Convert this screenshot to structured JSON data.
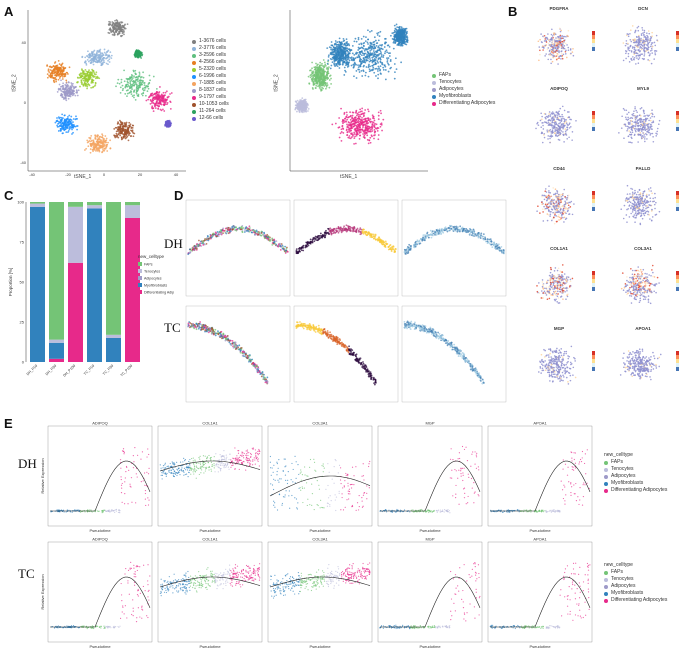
{
  "panels": {
    "A": "A",
    "B": "B",
    "C": "C",
    "D": "D",
    "E": "E"
  },
  "row_labels": {
    "dh": "DH",
    "tc": "TC",
    "dh2": "DH",
    "tc2": "TC"
  },
  "tsne_left": {
    "xlabel": "tSNE_1",
    "ylabel": "tSNE_2",
    "xticks": [
      "-40",
      "-20",
      "0",
      "20",
      "40"
    ],
    "yticks": [
      "40",
      "0",
      "-40"
    ],
    "legend": [
      {
        "label": "1-3676 cells",
        "color": "#7f7f7f"
      },
      {
        "label": "2-3776 cells",
        "color": "#8fb3d9"
      },
      {
        "label": "3-2596 cells",
        "color": "#5fbf7f"
      },
      {
        "label": "4-2566 cells",
        "color": "#e67e22"
      },
      {
        "label": "5-2320 cells",
        "color": "#9acd32"
      },
      {
        "label": "6-1996 cells",
        "color": "#1e90ff"
      },
      {
        "label": "7-1885 cells",
        "color": "#f4a460"
      },
      {
        "label": "8-1837 cells",
        "color": "#9e9ac8"
      },
      {
        "label": "9-1797 cells",
        "color": "#e7298a"
      },
      {
        "label": "10-1053 cells",
        "color": "#a0522d"
      },
      {
        "label": "11-264 cells",
        "color": "#2ca25f"
      },
      {
        "label": "12-66 cells",
        "color": "#6a5acd"
      }
    ]
  },
  "tsne_right": {
    "xlabel": "tSNE_1",
    "ylabel": "tSNE_2",
    "legend": [
      {
        "label": "FAPs",
        "color": "#74c476"
      },
      {
        "label": "Tenocytes",
        "color": "#bcbddc"
      },
      {
        "label": "Adipocytes",
        "color": "#9e9ac8"
      },
      {
        "label": "Myofibroblasts",
        "color": "#3182bd"
      },
      {
        "label": "Differentiating Adipocytes",
        "color": "#e7298a"
      }
    ]
  },
  "feature_plots": {
    "genes": [
      "PDGFRA",
      "DCN",
      "ADIPOQ",
      "MYL9",
      "CD44",
      "PALLD",
      "COL1A1",
      "COL3A1",
      "MGP",
      "APOA1"
    ]
  },
  "bar_chart": {
    "ylabel": "Proportion [%]",
    "legend_title": "new_celltype",
    "categories": [
      "DH_P10",
      "DH_P30",
      "DH_P100",
      "TC_P10",
      "TC_P30",
      "TC_P100"
    ],
    "yticks": [
      "100",
      "75",
      "50",
      "25",
      "0"
    ],
    "legend": [
      {
        "label": "FAPs",
        "color": "#74c476"
      },
      {
        "label": "Tenocytes",
        "color": "#bcbddc"
      },
      {
        "label": "Adipocytes",
        "color": "#9e9ac8"
      },
      {
        "label": "Myofibroblasts",
        "color": "#3182bd"
      },
      {
        "label": "Differentiating Adipocytes",
        "color": "#e7298a"
      }
    ]
  },
  "chart_data": {
    "type": "bar",
    "stacked": true,
    "categories": [
      "DH_P10",
      "DH_P30",
      "DH_P100",
      "TC_P10",
      "TC_P30",
      "TC_P100"
    ],
    "ylim": [
      0,
      100
    ],
    "ylabel": "Proportion [%]",
    "series": [
      {
        "name": "Differentiating Adipocytes",
        "color": "#e7298a",
        "values": [
          0,
          2,
          62,
          0,
          0,
          90
        ]
      },
      {
        "name": "Myofibroblasts",
        "color": "#3182bd",
        "values": [
          97,
          10,
          0,
          96,
          15,
          0
        ]
      },
      {
        "name": "Adipocytes",
        "color": "#9e9ac8",
        "values": [
          0,
          0,
          0,
          0,
          0,
          0
        ]
      },
      {
        "name": "Tenocytes",
        "color": "#bcbddc",
        "values": [
          2,
          2,
          35,
          2,
          2,
          8
        ]
      },
      {
        "name": "FAPs",
        "color": "#74c476",
        "values": [
          1,
          86,
          3,
          2,
          83,
          2
        ]
      }
    ]
  },
  "pseudotime": {
    "xlabel": "Pseudotime",
    "ylabel": "Relative Expression",
    "dh_genes": [
      "ADIPOQ",
      "COL1A1",
      "COL3A1",
      "MGP",
      "APOA1"
    ],
    "tc_genes": [
      "ADIPOQ",
      "COL1A1",
      "COL3A1",
      "MGP",
      "APOA1"
    ],
    "legend_title": "new_celltype",
    "legend": [
      {
        "label": "FAPs",
        "color": "#74c476"
      },
      {
        "label": "Tenocytes",
        "color": "#bcbddc"
      },
      {
        "label": "Adipocytes",
        "color": "#9e9ac8"
      },
      {
        "label": "Myofibroblasts",
        "color": "#3182bd"
      },
      {
        "label": "Differentiating Adipocytes",
        "color": "#e7298a"
      }
    ]
  }
}
